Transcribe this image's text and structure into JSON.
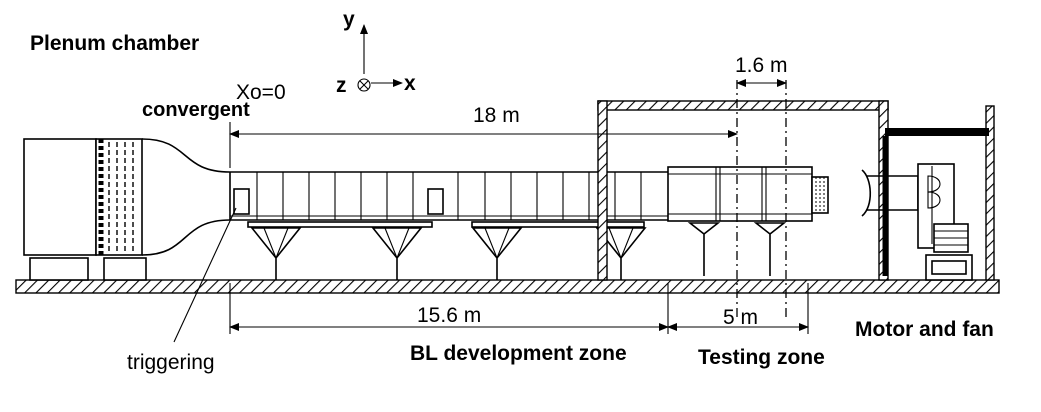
{
  "labels": {
    "plenum": "Plenum chamber",
    "convergent": "convergent",
    "x0": "Xo=0",
    "axis_y": "y",
    "axis_z": "z",
    "axis_x": "x",
    "len_18": "18 m",
    "len_1_6": "1.6 m",
    "len_15_6": "15.6 m",
    "len_5": "5 m",
    "triggering": "triggering",
    "bl_zone": "BL development zone",
    "testing_zone": "Testing zone",
    "motor_fan": "Motor and fan"
  }
}
